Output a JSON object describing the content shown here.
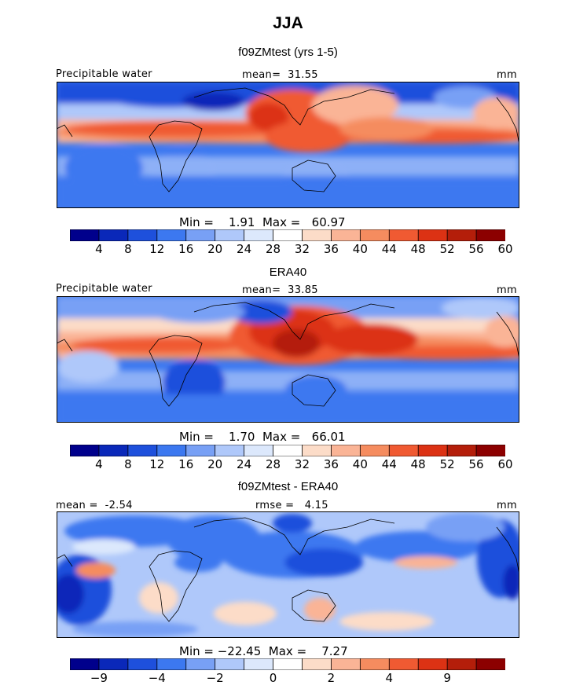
{
  "figure": {
    "season": "JJA"
  },
  "chart_data": [
    {
      "type": "heatmap",
      "title": "f09ZMtest (yrs 1-5)",
      "variable": "Precipitable water",
      "mean_label": "mean=",
      "mean_value": "31.55",
      "units": "mm",
      "min_label": "Min =",
      "min_value": "1.91",
      "max_label": "Max =",
      "max_value": "60.97",
      "colorbar_ticks": [
        "4",
        "8",
        "12",
        "16",
        "20",
        "24",
        "28",
        "32",
        "36",
        "40",
        "44",
        "48",
        "52",
        "56",
        "60"
      ],
      "palette": [
        "#00008c",
        "#0a28b9",
        "#1e50dc",
        "#3c78f0",
        "#78a0f5",
        "#afc8fa",
        "#dce8fc",
        "#ffffff",
        "#fcdcc8",
        "#fab496",
        "#f58c5f",
        "#f05a32",
        "#dc3214",
        "#b41e0a",
        "#8c0000"
      ]
    },
    {
      "type": "heatmap",
      "title": "ERA40",
      "variable": "Precipitable water",
      "mean_label": "mean=",
      "mean_value": "33.85",
      "units": "mm",
      "min_label": "Min =",
      "min_value": "1.70",
      "max_label": "Max =",
      "max_value": "66.01",
      "colorbar_ticks": [
        "4",
        "8",
        "12",
        "16",
        "20",
        "24",
        "28",
        "32",
        "36",
        "40",
        "44",
        "48",
        "52",
        "56",
        "60"
      ],
      "palette": [
        "#00008c",
        "#0a28b9",
        "#1e50dc",
        "#3c78f0",
        "#78a0f5",
        "#afc8fa",
        "#dce8fc",
        "#ffffff",
        "#fcdcc8",
        "#fab496",
        "#f58c5f",
        "#f05a32",
        "#dc3214",
        "#b41e0a",
        "#8c0000"
      ]
    },
    {
      "type": "heatmap",
      "title": "f09ZMtest - ERA40",
      "mean_label": "mean =",
      "mean_value": "-2.54",
      "rmse_label": "rmse =",
      "rmse_value": "4.15",
      "units": "mm",
      "min_label": "Min =",
      "min_value": "−22.45",
      "max_label": "Max =",
      "max_value": "7.27",
      "colorbar_ticks": [
        "−9",
        "−4",
        "−2",
        "0",
        "2",
        "4",
        "9"
      ],
      "palette": [
        "#00008c",
        "#0a28b9",
        "#1e50dc",
        "#3c78f0",
        "#78a0f5",
        "#afc8fa",
        "#dce8fc",
        "#ffffff",
        "#fcdcc8",
        "#fab496",
        "#f58c5f",
        "#f05a32",
        "#dc3214",
        "#b41e0a",
        "#8c0000"
      ]
    }
  ]
}
